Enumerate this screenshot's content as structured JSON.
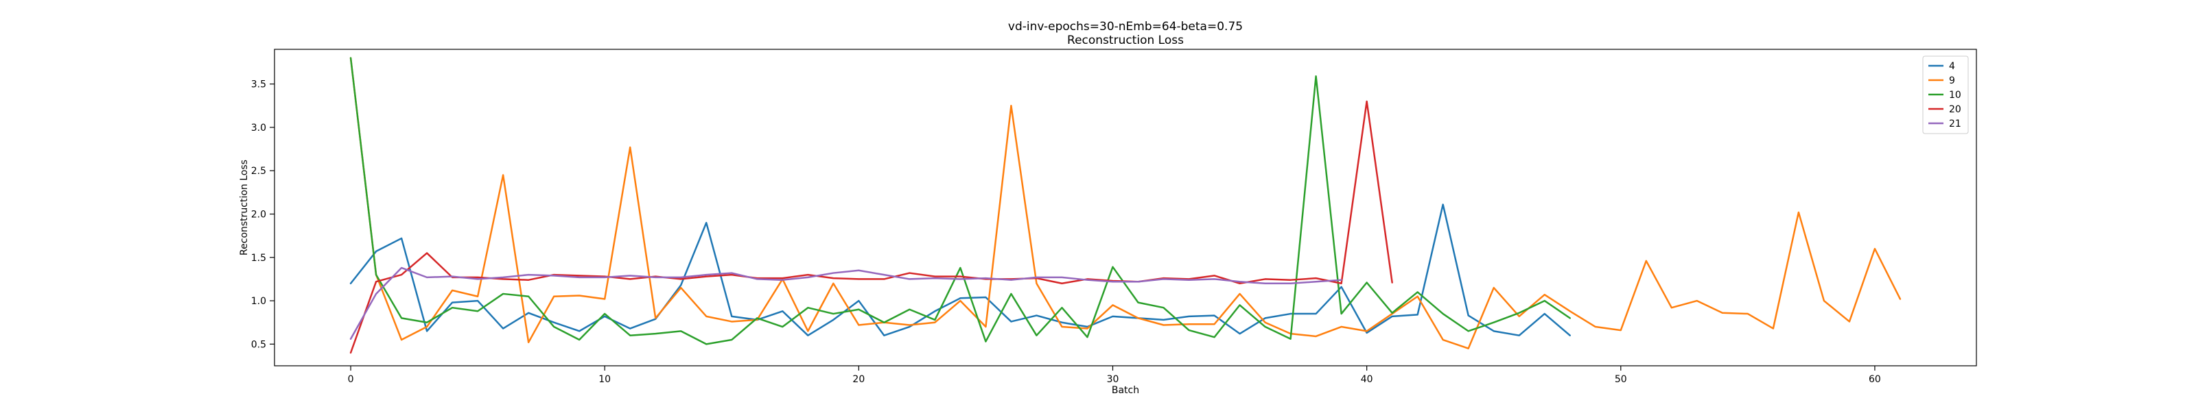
{
  "chart_data": {
    "type": "line",
    "title": "vd-inv-epochs=30-nEmb=64-beta=0.75",
    "subtitle": "Reconstruction Loss",
    "xlabel": "Batch",
    "ylabel": "Reconstruction Loss",
    "xlim": [
      -3,
      64
    ],
    "ylim": [
      0.25,
      3.9
    ],
    "xticks": [
      0,
      10,
      20,
      30,
      40,
      50,
      60
    ],
    "yticks": [
      0.5,
      1.0,
      1.5,
      2.0,
      2.5,
      3.0,
      3.5
    ],
    "xtick_labels": [
      "0",
      "10",
      "20",
      "30",
      "40",
      "50",
      "60"
    ],
    "ytick_labels": [
      "0.5",
      "1.0",
      "1.5",
      "2.0",
      "2.5",
      "3.0",
      "3.5"
    ],
    "grid": false,
    "legend_position": "top-right",
    "series": [
      {
        "name": "4",
        "color": "#1f77b4",
        "values": [
          1.2,
          1.57,
          1.72,
          0.65,
          0.98,
          1.0,
          0.68,
          0.86,
          0.75,
          0.65,
          0.82,
          0.68,
          0.79,
          1.18,
          1.9,
          0.82,
          0.78,
          0.88,
          0.6,
          0.78,
          1.0,
          0.6,
          0.7,
          0.88,
          1.03,
          1.04,
          0.76,
          0.83,
          0.75,
          0.7,
          0.82,
          0.8,
          0.78,
          0.82,
          0.83,
          0.62,
          0.8,
          0.85,
          0.85,
          1.16,
          0.63,
          0.82,
          0.84,
          2.11,
          0.83,
          0.65,
          0.6,
          0.85,
          0.6
        ]
      },
      {
        "name": "9",
        "color": "#ff7f0e",
        "values": [
          3.8,
          1.3,
          0.55,
          0.7,
          1.12,
          1.05,
          2.45,
          0.52,
          1.05,
          1.06,
          1.02,
          2.77,
          0.8,
          1.15,
          0.82,
          0.76,
          0.78,
          1.25,
          0.65,
          1.2,
          0.72,
          0.75,
          0.72,
          0.75,
          1.0,
          0.7,
          3.25,
          1.2,
          0.7,
          0.68,
          0.95,
          0.8,
          0.72,
          0.73,
          0.73,
          1.08,
          0.75,
          0.62,
          0.59,
          0.7,
          0.65,
          0.85,
          1.05,
          0.55,
          0.45,
          1.15,
          0.82,
          1.07,
          0.88,
          0.7,
          0.66,
          1.46,
          0.92,
          1.0,
          0.86,
          0.85,
          0.68,
          2.02,
          1.0,
          0.76,
          1.6,
          1.02
        ]
      },
      {
        "name": "10",
        "color": "#2ca02c",
        "values": [
          3.8,
          1.3,
          0.8,
          0.75,
          0.92,
          0.88,
          1.08,
          1.05,
          0.7,
          0.55,
          0.85,
          0.6,
          0.62,
          0.65,
          0.5,
          0.55,
          0.8,
          0.7,
          0.92,
          0.85,
          0.9,
          0.75,
          0.9,
          0.78,
          1.38,
          0.53,
          1.08,
          0.6,
          0.92,
          0.58,
          1.39,
          0.98,
          0.92,
          0.66,
          0.58,
          0.95,
          0.7,
          0.56,
          3.59,
          0.85,
          1.21,
          0.86,
          1.1,
          0.85,
          0.65,
          0.75,
          0.86,
          1.0,
          0.8
        ]
      },
      {
        "name": "20",
        "color": "#d62728",
        "values": [
          0.4,
          1.22,
          1.3,
          1.55,
          1.27,
          1.27,
          1.25,
          1.24,
          1.3,
          1.29,
          1.28,
          1.25,
          1.28,
          1.25,
          1.28,
          1.3,
          1.26,
          1.26,
          1.3,
          1.26,
          1.25,
          1.25,
          1.32,
          1.28,
          1.28,
          1.25,
          1.25,
          1.26,
          1.2,
          1.25,
          1.23,
          1.22,
          1.26,
          1.25,
          1.29,
          1.2,
          1.25,
          1.24,
          1.26,
          1.2,
          3.3,
          1.21
        ]
      },
      {
        "name": "21",
        "color": "#9467bd",
        "values": [
          0.56,
          1.08,
          1.38,
          1.27,
          1.28,
          1.25,
          1.27,
          1.3,
          1.29,
          1.27,
          1.27,
          1.29,
          1.27,
          1.27,
          1.3,
          1.32,
          1.25,
          1.24,
          1.27,
          1.32,
          1.35,
          1.3,
          1.25,
          1.26,
          1.25,
          1.26,
          1.24,
          1.27,
          1.27,
          1.24,
          1.22,
          1.22,
          1.25,
          1.24,
          1.25,
          1.22,
          1.2,
          1.2,
          1.22,
          1.24
        ]
      }
    ]
  }
}
